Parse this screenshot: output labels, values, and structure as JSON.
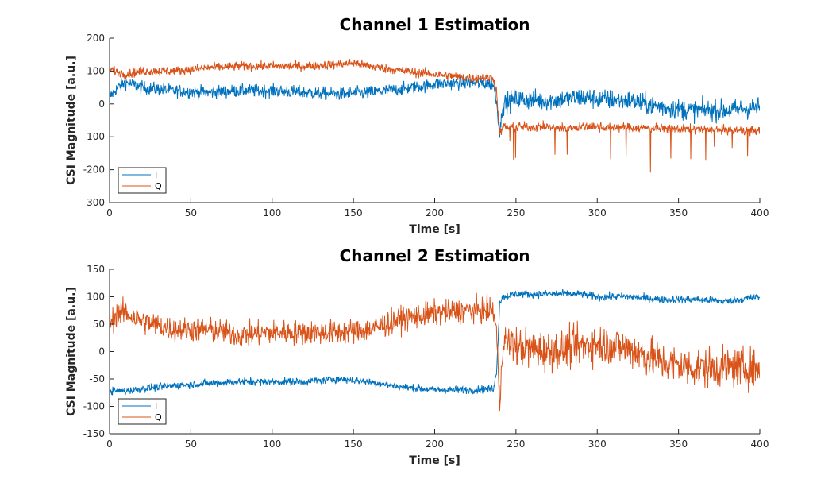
{
  "colors": {
    "I": "#0072BD",
    "Q": "#D95319",
    "axis": "#262626"
  },
  "chart_data": [
    {
      "type": "line",
      "title": "Channel 1 Estimation",
      "xlabel": "Time [s]",
      "ylabel": "CSI Magnitude [a.u.]",
      "xlim": [
        0,
        400
      ],
      "ylim": [
        -300,
        200
      ],
      "xticks": [
        0,
        50,
        100,
        150,
        200,
        250,
        300,
        350,
        400
      ],
      "yticks": [
        200,
        100,
        0,
        -100,
        -200,
        -300
      ],
      "grid": false,
      "legend_position": "bottom-left",
      "series": [
        {
          "name": "I",
          "x": [
            0,
            5,
            10,
            20,
            40,
            60,
            80,
            100,
            120,
            140,
            160,
            180,
            200,
            220,
            236,
            238,
            240,
            242,
            250,
            270,
            290,
            300,
            320,
            340,
            360,
            380,
            400
          ],
          "y": [
            20,
            50,
            65,
            50,
            40,
            35,
            40,
            40,
            35,
            30,
            35,
            45,
            60,
            65,
            60,
            10,
            -90,
            0,
            15,
            10,
            20,
            15,
            10,
            -10,
            -20,
            -20,
            -10
          ]
        },
        {
          "name": "Q",
          "x": [
            0,
            10,
            20,
            40,
            60,
            80,
            100,
            120,
            140,
            150,
            160,
            180,
            200,
            220,
            236,
            238,
            240,
            242,
            250,
            270,
            280,
            290,
            300,
            320,
            340,
            360,
            380,
            400
          ],
          "y": [
            105,
            90,
            100,
            100,
            110,
            115,
            115,
            115,
            120,
            125,
            115,
            100,
            90,
            80,
            80,
            40,
            -95,
            -70,
            -70,
            -70,
            -75,
            -70,
            -70,
            -72,
            -75,
            -78,
            -80,
            -82
          ]
        }
      ]
    },
    {
      "type": "line",
      "title": "Channel 2 Estimation",
      "xlabel": "Time [s]",
      "ylabel": "CSI Magnitude [a.u.]",
      "xlim": [
        0,
        400
      ],
      "ylim": [
        -150,
        150
      ],
      "xticks": [
        0,
        50,
        100,
        150,
        200,
        250,
        300,
        350,
        400
      ],
      "yticks": [
        150,
        100,
        50,
        0,
        -50,
        -100,
        -150
      ],
      "grid": false,
      "legend_position": "bottom-left",
      "series": [
        {
          "name": "I",
          "x": [
            0,
            10,
            20,
            40,
            60,
            80,
            100,
            120,
            140,
            160,
            180,
            200,
            220,
            236,
            238,
            240,
            242,
            250,
            270,
            290,
            300,
            320,
            340,
            360,
            380,
            400
          ],
          "y": [
            -72,
            -72,
            -68,
            -62,
            -58,
            -55,
            -55,
            -55,
            -50,
            -55,
            -65,
            -70,
            -70,
            -68,
            -40,
            90,
            100,
            105,
            105,
            105,
            100,
            100,
            95,
            95,
            92,
            100
          ]
        },
        {
          "name": "Q",
          "x": [
            0,
            5,
            10,
            20,
            40,
            60,
            80,
            100,
            120,
            140,
            160,
            180,
            200,
            220,
            236,
            238,
            240,
            242,
            250,
            270,
            290,
            300,
            320,
            340,
            360,
            380,
            400
          ],
          "y": [
            50,
            70,
            70,
            55,
            40,
            40,
            30,
            35,
            35,
            35,
            40,
            60,
            70,
            75,
            75,
            40,
            -100,
            20,
            10,
            0,
            10,
            15,
            5,
            -20,
            -30,
            -30,
            -30
          ]
        }
      ]
    }
  ]
}
